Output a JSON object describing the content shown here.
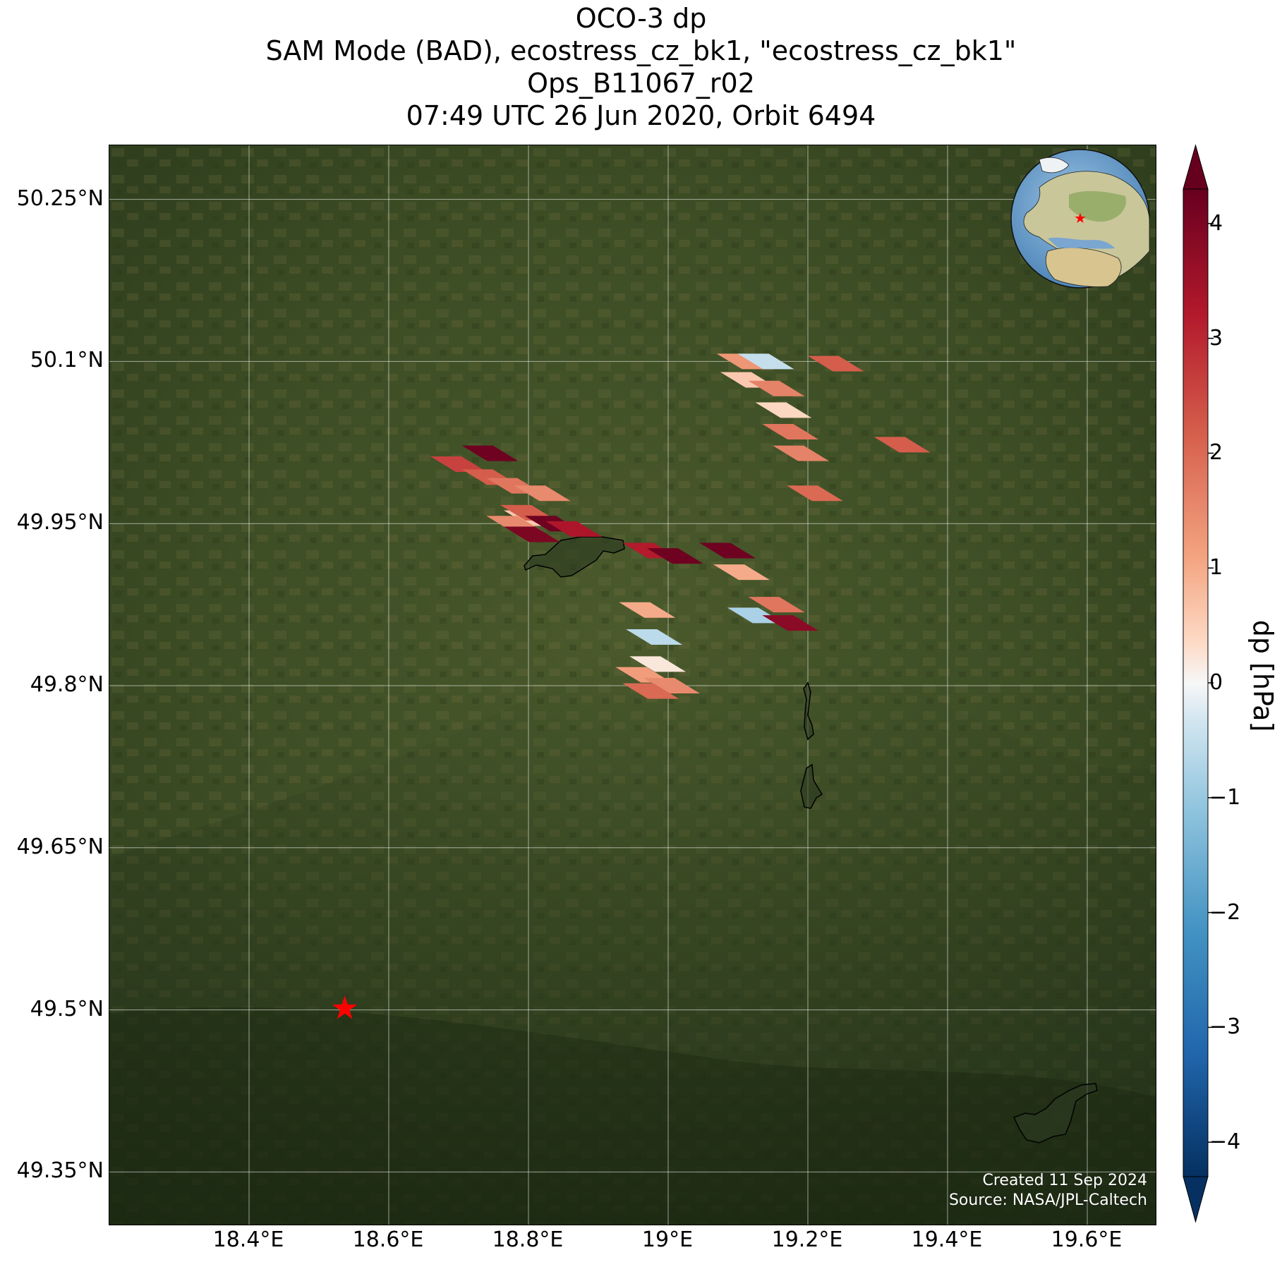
{
  "title_lines": [
    "OCO-3 dp",
    "SAM Mode (BAD), ecostress_cz_bk1, \"ecostress_cz_bk1\"",
    "Ops_B11067_r02",
    "07:49 UTC 26 Jun 2020, Orbit 6494"
  ],
  "map": {
    "lon_range": [
      18.2,
      19.7
    ],
    "lat_range": [
      49.3,
      50.3
    ],
    "lat_ticks": [
      {
        "value": 50.25,
        "label": "50.25°N"
      },
      {
        "value": 50.1,
        "label": "50.1°N"
      },
      {
        "value": 49.95,
        "label": "49.95°N"
      },
      {
        "value": 49.8,
        "label": "49.8°N"
      },
      {
        "value": 49.65,
        "label": "49.65°N"
      },
      {
        "value": 49.5,
        "label": "49.5°N"
      },
      {
        "value": 49.35,
        "label": "49.35°N"
      }
    ],
    "lon_ticks": [
      {
        "value": 18.4,
        "label": "18.4°E"
      },
      {
        "value": 18.6,
        "label": "18.6°E"
      },
      {
        "value": 18.8,
        "label": "18.8°E"
      },
      {
        "value": 19.0,
        "label": "19°E"
      },
      {
        "value": 19.2,
        "label": "19.2°E"
      },
      {
        "value": 19.4,
        "label": "19.4°E"
      },
      {
        "value": 19.6,
        "label": "19.6°E"
      }
    ],
    "background": "satellite imagery, green forested terrain",
    "target_marker": {
      "lon": 18.537,
      "lat": 49.502,
      "color": "#ff0000",
      "symbol": "star"
    },
    "inset_globe": {
      "description": "globe centered on Europe with red star target",
      "marker_color": "#ff0000"
    }
  },
  "credits": {
    "created": "Created 11 Sep 2024",
    "source": "Source: NASA/JPL-Caltech"
  },
  "colorbar": {
    "label": "dp [hPa]",
    "range": [
      -4.3,
      4.3
    ],
    "extend": "both",
    "colormap": "RdBu_r",
    "ticks": [
      {
        "value": 4,
        "label": "4"
      },
      {
        "value": 3,
        "label": "3"
      },
      {
        "value": 2,
        "label": "2"
      },
      {
        "value": 1,
        "label": "1"
      },
      {
        "value": 0,
        "label": "0"
      },
      {
        "value": -1,
        "label": "−1"
      },
      {
        "value": -2,
        "label": "−2"
      },
      {
        "value": -3,
        "label": "−3"
      },
      {
        "value": -4,
        "label": "−4"
      }
    ]
  },
  "chart_data": {
    "type": "scatter",
    "xlabel": "",
    "ylabel": "",
    "value_label": "dp [hPa]",
    "soundings": [
      {
        "lon": 18.7,
        "lat": 50.005,
        "dp": 2.6
      },
      {
        "lon": 18.745,
        "lat": 49.993,
        "dp": 2.2
      },
      {
        "lon": 18.745,
        "lat": 50.015,
        "dp": 4.2
      },
      {
        "lon": 18.78,
        "lat": 49.985,
        "dp": 1.8
      },
      {
        "lon": 18.82,
        "lat": 49.978,
        "dp": 1.5
      },
      {
        "lon": 18.805,
        "lat": 49.955,
        "dp": 0.6
      },
      {
        "lon": 18.8,
        "lat": 49.96,
        "dp": 2.2
      },
      {
        "lon": 18.78,
        "lat": 49.95,
        "dp": 1.5
      },
      {
        "lon": 18.835,
        "lat": 49.95,
        "dp": 4.2
      },
      {
        "lon": 18.805,
        "lat": 49.94,
        "dp": 4.0
      },
      {
        "lon": 18.865,
        "lat": 49.945,
        "dp": 3.3
      },
      {
        "lon": 18.975,
        "lat": 49.925,
        "dp": 3.2
      },
      {
        "lon": 19.01,
        "lat": 49.92,
        "dp": 4.2
      },
      {
        "lon": 19.085,
        "lat": 49.925,
        "dp": 4.2
      },
      {
        "lon": 19.105,
        "lat": 49.905,
        "dp": 1.0
      },
      {
        "lon": 19.155,
        "lat": 49.875,
        "dp": 1.8
      },
      {
        "lon": 19.125,
        "lat": 49.865,
        "dp": -0.8
      },
      {
        "lon": 19.175,
        "lat": 49.858,
        "dp": 3.8
      },
      {
        "lon": 18.97,
        "lat": 49.87,
        "dp": 1.0
      },
      {
        "lon": 18.98,
        "lat": 49.845,
        "dp": -0.6
      },
      {
        "lon": 18.985,
        "lat": 49.82,
        "dp": 0.2
      },
      {
        "lon": 18.965,
        "lat": 49.81,
        "dp": 1.2
      },
      {
        "lon": 19.005,
        "lat": 49.8,
        "dp": 1.5
      },
      {
        "lon": 18.975,
        "lat": 49.795,
        "dp": 2.0
      },
      {
        "lon": 19.11,
        "lat": 50.1,
        "dp": 1.3
      },
      {
        "lon": 19.14,
        "lat": 50.1,
        "dp": -0.5
      },
      {
        "lon": 19.115,
        "lat": 50.083,
        "dp": 0.6
      },
      {
        "lon": 19.155,
        "lat": 50.075,
        "dp": 1.6
      },
      {
        "lon": 19.165,
        "lat": 50.055,
        "dp": 0.4
      },
      {
        "lon": 19.175,
        "lat": 50.035,
        "dp": 1.8
      },
      {
        "lon": 19.19,
        "lat": 50.015,
        "dp": 1.6
      },
      {
        "lon": 19.24,
        "lat": 50.098,
        "dp": 2.2
      },
      {
        "lon": 19.335,
        "lat": 50.023,
        "dp": 2.2
      },
      {
        "lon": 19.21,
        "lat": 49.978,
        "dp": 2.0
      }
    ]
  }
}
